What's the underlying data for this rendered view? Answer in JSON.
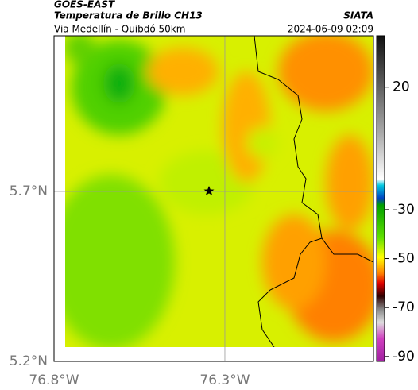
{
  "header": {
    "source": "GOES-EAST",
    "title": "Temperatura de Brillo CH13",
    "subtitle": "Via Medellín - Quibdó 50km",
    "brand": "SIATA",
    "date": "2024-06-09 02:09"
  },
  "map": {
    "xlim": [
      -76.8,
      -75.865
    ],
    "ylim": [
      5.2,
      6.158
    ],
    "xticks": [
      {
        "value": -76.8,
        "label": "76.8°W"
      },
      {
        "value": -76.3,
        "label": "76.3°W"
      }
    ],
    "yticks": [
      {
        "value": 5.2,
        "label": "5.2°N"
      },
      {
        "value": 5.7,
        "label": "5.7°N"
      }
    ],
    "grid": true
  },
  "colorbar": {
    "lim": [
      -92,
      41
    ],
    "ticks": [
      20,
      -30,
      -50,
      -70,
      -90
    ]
  }
}
